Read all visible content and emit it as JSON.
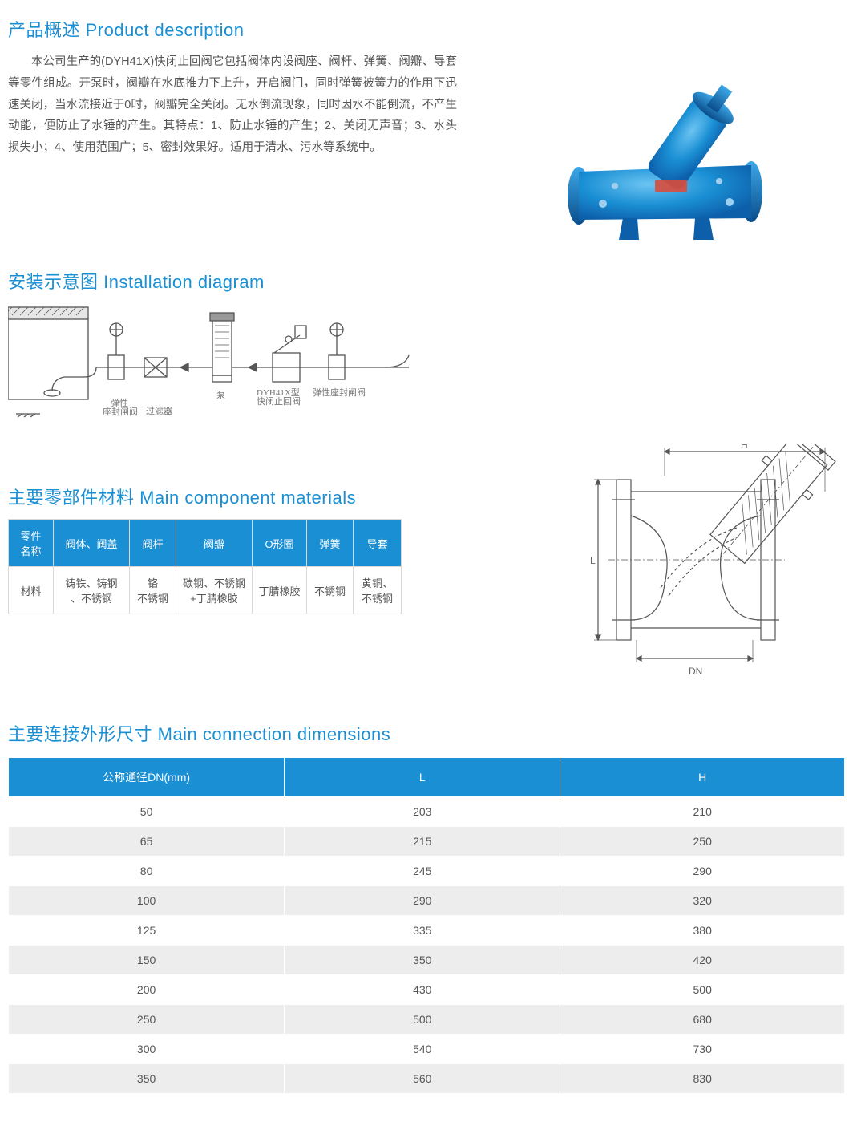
{
  "colors": {
    "accent": "#1a8fd4",
    "text_body": "#555555",
    "table_alt": "#ededed",
    "cell_border": "#d8d8d8",
    "valve_blue_light": "#3da8e8",
    "valve_blue_dark": "#0d5faa",
    "valve_bolt": "#9fcfee",
    "drawing_line": "#555555"
  },
  "product_desc": {
    "title": "产品概述 Product description",
    "body": "本公司生产的(DYH41X)快闭止回阀它包括阀体内设阀座、阀杆、弹簧、阀瓣、导套等零件组成。开泵时，阀瓣在水底推力下上升，开启阀门，同时弹簧被簧力的作用下迅速关闭，当水流接近于0时，阀瓣完全关闭。无水倒流现象，同时因水不能倒流，不产生动能，便防止了水锤的产生。其特点：1、防止水锤的产生；2、关闭无声音；3、水头损失小；4、使用范围广；5、密封效果好。适用于清水、污水等系统中。"
  },
  "install": {
    "title": "安装示意图 Installation diagram",
    "labels": {
      "gate_valve": "弹性\n座封闸阀",
      "strainer": "过滤器",
      "pump": "泵",
      "check_valve": "DYH41X型\n快闭止回阀",
      "gate_valve2": "弹性座封闸阀"
    }
  },
  "materials": {
    "title": "主要零部件材料 Main component materials",
    "headers": {
      "name": "零件\n名称",
      "body": "阀体、阀盖",
      "stem": "阀杆",
      "disc": "阀瓣",
      "oring": "O形圈",
      "spring": "弹簧",
      "sleeve": "导套"
    },
    "row_label": "材料",
    "values": {
      "body": "铸铁、铸钢\n、不锈钢",
      "stem": "铬\n不锈钢",
      "disc": "碳钢、不锈钢\n+丁腈橡胶",
      "oring": "丁腈橡胶",
      "spring": "不锈钢",
      "sleeve": "黄铜、\n不锈钢"
    }
  },
  "tech_drawing": {
    "labels": {
      "H": "H",
      "L": "L",
      "DN": "DN"
    }
  },
  "dimensions": {
    "title": "主要连接外形尺寸 Main connection dimensions",
    "headers": {
      "dn": "公称通径DN(mm)",
      "L": "L",
      "H": "H"
    },
    "rows": [
      {
        "dn": "50",
        "L": "203",
        "H": "210"
      },
      {
        "dn": "65",
        "L": "215",
        "H": "250"
      },
      {
        "dn": "80",
        "L": "245",
        "H": "290"
      },
      {
        "dn": "100",
        "L": "290",
        "H": "320"
      },
      {
        "dn": "125",
        "L": "335",
        "H": "380"
      },
      {
        "dn": "150",
        "L": "350",
        "H": "420"
      },
      {
        "dn": "200",
        "L": "430",
        "H": "500"
      },
      {
        "dn": "250",
        "L": "500",
        "H": "680"
      },
      {
        "dn": "300",
        "L": "540",
        "H": "730"
      },
      {
        "dn": "350",
        "L": "560",
        "H": "830"
      }
    ]
  }
}
